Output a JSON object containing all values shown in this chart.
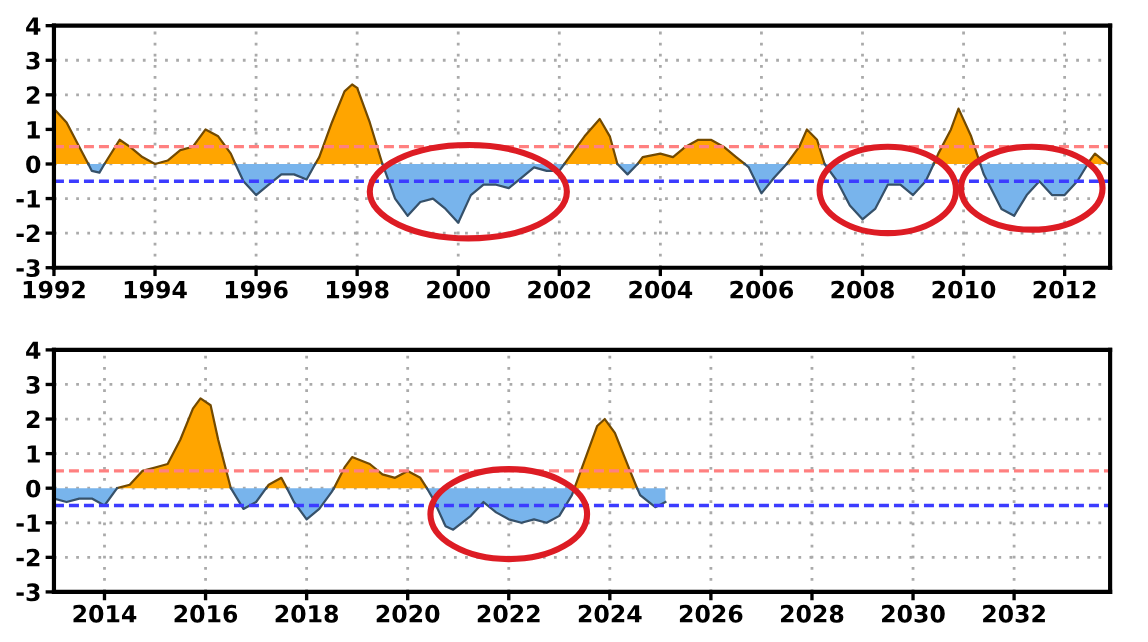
{
  "chart_data": [
    {
      "type": "area",
      "series": [
        {
          "color": "#ffa500",
          "x": [
            1992,
            1992.25,
            1992.5,
            1992.68,
            1992.85,
            1993,
            1993.3,
            1993.5,
            1993.75,
            1994,
            1994.25,
            1994.5,
            1994.75,
            1995,
            1995.25,
            1995.5,
            1995.59,
            1996.5,
            1997.17,
            1997.25,
            1997.5,
            1997.75,
            1997.9,
            1998,
            1998.25,
            1998.5,
            2000,
            2002.1,
            2002.25,
            2002.5,
            2002.8,
            2003,
            2003.15,
            2003.35,
            2003.55,
            2003.65,
            2004,
            2004.25,
            2004.5,
            2004.75,
            2005,
            2005.25,
            2005.5,
            2005.67,
            2006,
            2006.5,
            2006.75,
            2006.9,
            2007.1,
            2007.25,
            2008,
            2009.41,
            2009.5,
            2009.75,
            2009.9,
            2010.15,
            2010.33,
            2011,
            2012.46,
            2012.5,
            2012.6,
            2012.85
          ],
          "values": [
            1.6,
            1.2,
            0.5,
            0,
            null,
            0,
            0.7,
            0.5,
            0.2,
            0,
            0.1,
            0.4,
            0.5,
            1.0,
            0.8,
            0.3,
            0,
            null,
            0,
            0.2,
            1.2,
            2.1,
            2.3,
            2.2,
            1.2,
            0,
            null,
            0,
            0.3,
            0.8,
            1.3,
            0.8,
            0,
            null,
            0,
            0.2,
            0.3,
            0.2,
            0.5,
            0.7,
            0.7,
            0.5,
            0.2,
            0,
            null,
            0,
            0.5,
            1.0,
            0.7,
            0,
            null,
            0,
            0.3,
            1.0,
            1.6,
            0.8,
            0,
            null,
            0,
            0.1,
            0.3,
            0
          ]
        },
        {
          "color": "#78b4ec",
          "x": [
            1992.68,
            1992.75,
            1992.9,
            1993,
            1994,
            1995.59,
            1995.75,
            1996,
            1996.25,
            1996.5,
            1996.75,
            1997,
            1997.17,
            1997.8,
            1998.5,
            1998.75,
            1999,
            1999.25,
            1999.5,
            1999.75,
            2000,
            2000.25,
            2000.5,
            2000.75,
            2001,
            2001.25,
            2001.5,
            2001.75,
            2002,
            2002.1,
            2002.6,
            2003.15,
            2003.35,
            2003.55,
            2004.5,
            2005.67,
            2005.75,
            2006,
            2006.25,
            2006.5,
            2006.9,
            2007.25,
            2007.5,
            2007.75,
            2008,
            2008.25,
            2008.5,
            2008.75,
            2009,
            2009.25,
            2009.41,
            2009.9,
            2010.33,
            2010.4,
            2010.75,
            2011,
            2011.25,
            2011.5,
            2011.75,
            2012,
            2012.25,
            2012.46
          ],
          "values": [
            0,
            -0.2,
            -0.25,
            0,
            null,
            0,
            -0.5,
            -0.9,
            -0.6,
            -0.3,
            -0.3,
            -0.45,
            0,
            null,
            0,
            -1.0,
            -1.5,
            -1.1,
            -1.0,
            -1.3,
            -1.7,
            -0.9,
            -0.6,
            -0.6,
            -0.7,
            -0.4,
            -0.1,
            -0.2,
            -0.2,
            0,
            null,
            0,
            -0.3,
            0,
            null,
            0,
            -0.1,
            -0.85,
            -0.4,
            0,
            null,
            0,
            -0.5,
            -1.2,
            -1.6,
            -1.3,
            -0.6,
            -0.6,
            -0.9,
            -0.5,
            0,
            null,
            0,
            -0.3,
            -1.3,
            -1.5,
            -0.9,
            -0.5,
            -0.9,
            -0.9,
            -0.5,
            0
          ]
        }
      ],
      "xlim": [
        1992,
        2012.9
      ],
      "xticks": [
        1992,
        1994,
        1996,
        1998,
        2000,
        2002,
        2004,
        2006,
        2008,
        2010,
        2012
      ],
      "ylim": [
        -3,
        4
      ],
      "yticks": [
        -3,
        -2,
        -1,
        0,
        1,
        2,
        3,
        4
      ],
      "grid": true,
      "ref_lines": [
        {
          "axis": "y",
          "value": 0.5,
          "color": "#ff8080",
          "line_style": "dashed"
        },
        {
          "axis": "y",
          "value": -0.5,
          "color": "#3c3cff",
          "line_style": "dashed"
        }
      ]
    },
    {
      "type": "area",
      "series": [
        {
          "color": "#ffa500",
          "x": [
            2014.25,
            2014.5,
            2014.75,
            2015,
            2015.25,
            2015.5,
            2015.75,
            2015.9,
            2016.1,
            2016.25,
            2016.5,
            2016.8,
            2017.2,
            2017.25,
            2017.5,
            2017.61,
            2018,
            2018.54,
            2018.75,
            2018.9,
            2019.25,
            2019.5,
            2019.75,
            2020,
            2020.25,
            2020.38,
            2022,
            2023.3,
            2023.5,
            2023.75,
            2023.9,
            2024.1,
            2024.4,
            2024.54
          ],
          "values": [
            0,
            0.1,
            0.5,
            0.6,
            0.7,
            1.4,
            2.3,
            2.6,
            2.4,
            1.4,
            0,
            null,
            0,
            0.1,
            0.3,
            0,
            null,
            0,
            0.6,
            0.9,
            0.7,
            0.4,
            0.3,
            0.5,
            0.3,
            0,
            null,
            0,
            0.8,
            1.8,
            2.0,
            1.6,
            0.5,
            0
          ]
        },
        {
          "color": "#78b4ec",
          "x": [
            2013,
            2013.25,
            2013.5,
            2013.75,
            2014,
            2014.25,
            2015,
            2016.5,
            2016.75,
            2017,
            2017.2,
            2017.4,
            2017.61,
            2017.75,
            2018,
            2018.25,
            2018.5,
            2018.54,
            2019.5,
            2020.38,
            2020.5,
            2020.75,
            2020.9,
            2021.25,
            2021.5,
            2021.75,
            2022,
            2022.25,
            2022.5,
            2022.75,
            2023,
            2023.25,
            2023.3,
            2023.9,
            2024.54,
            2024.6,
            2024.9,
            2025.1
          ],
          "values": [
            -0.3,
            -0.4,
            -0.3,
            -0.3,
            -0.5,
            0,
            null,
            0,
            -0.6,
            -0.4,
            0,
            null,
            0,
            -0.4,
            -0.9,
            -0.6,
            -0.1,
            0,
            null,
            0,
            -0.3,
            -1.1,
            -1.2,
            -0.8,
            -0.4,
            -0.7,
            -0.9,
            -1.0,
            -0.9,
            -1.0,
            -0.8,
            -0.2,
            0,
            null,
            0,
            -0.2,
            -0.55,
            -0.4
          ]
        }
      ],
      "xlim": [
        2013,
        2033.9
      ],
      "xticks": [
        2014,
        2016,
        2018,
        2020,
        2022,
        2024,
        2026,
        2028,
        2030,
        2032
      ],
      "ylim": [
        -3,
        4
      ],
      "yticks": [
        -3,
        -2,
        -1,
        0,
        1,
        2,
        3,
        4
      ],
      "grid": true,
      "ref_lines": [
        {
          "axis": "y",
          "value": 0.5,
          "color": "#ff8080",
          "line_style": "dashed"
        },
        {
          "axis": "y",
          "value": -0.5,
          "color": "#3c3cff",
          "line_style": "dashed"
        }
      ]
    }
  ]
}
